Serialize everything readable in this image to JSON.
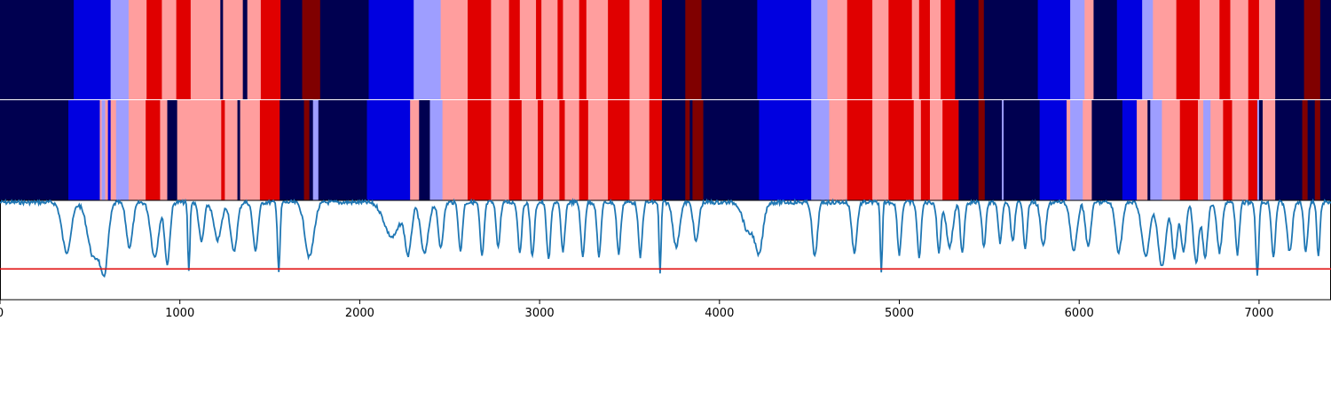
{
  "colors": {
    "state_0": "#000050",
    "state_1": "#0000e0",
    "state_2": "#9e9eff",
    "state_3": "#ff9e9e",
    "state_4": "#e00000",
    "state_5": "#800000",
    "signal_line": "#1f77b4",
    "threshold_line": "#e01010"
  },
  "chart_data": {
    "type": "segmentation-strips-with-line",
    "title": "",
    "xlabel": "",
    "ylabel": "",
    "xlim": [
      0,
      7400
    ],
    "xticks": [
      0,
      1000,
      2000,
      3000,
      4000,
      5000,
      6000,
      7000
    ],
    "xtick_labels": [
      "0",
      "1000",
      "2000",
      "3000",
      "4000",
      "5000",
      "6000",
      "7000"
    ],
    "state_legend": "0=darkest blue, 1=blue, 2=light blue, 3=light red, 4=red, 5=dark red",
    "strip_top": {
      "segments": [
        [
          0,
          410,
          0
        ],
        [
          410,
          615,
          1
        ],
        [
          615,
          715,
          2
        ],
        [
          715,
          815,
          3
        ],
        [
          815,
          900,
          4
        ],
        [
          900,
          980,
          3
        ],
        [
          980,
          1060,
          4
        ],
        [
          1060,
          1225,
          3
        ],
        [
          1225,
          1240,
          0
        ],
        [
          1240,
          1350,
          3
        ],
        [
          1350,
          1375,
          0
        ],
        [
          1375,
          1450,
          3
        ],
        [
          1450,
          1560,
          4
        ],
        [
          1560,
          1680,
          0
        ],
        [
          1680,
          1780,
          5
        ],
        [
          1780,
          2050,
          0
        ],
        [
          2050,
          2300,
          1
        ],
        [
          2300,
          2450,
          2
        ],
        [
          2450,
          2600,
          3
        ],
        [
          2600,
          2730,
          4
        ],
        [
          2730,
          2830,
          3
        ],
        [
          2830,
          2890,
          4
        ],
        [
          2890,
          2980,
          3
        ],
        [
          2980,
          3010,
          4
        ],
        [
          3010,
          3100,
          3
        ],
        [
          3100,
          3130,
          4
        ],
        [
          3130,
          3220,
          3
        ],
        [
          3220,
          3260,
          4
        ],
        [
          3260,
          3380,
          3
        ],
        [
          3380,
          3500,
          4
        ],
        [
          3500,
          3610,
          3
        ],
        [
          3610,
          3680,
          4
        ],
        [
          3680,
          3810,
          0
        ],
        [
          3810,
          3900,
          5
        ],
        [
          3900,
          4210,
          0
        ],
        [
          4210,
          4510,
          1
        ],
        [
          4510,
          4600,
          2
        ],
        [
          4600,
          4710,
          3
        ],
        [
          4710,
          4850,
          4
        ],
        [
          4850,
          4940,
          3
        ],
        [
          4940,
          5070,
          4
        ],
        [
          5070,
          5110,
          3
        ],
        [
          5110,
          5170,
          4
        ],
        [
          5170,
          5230,
          3
        ],
        [
          5230,
          5310,
          4
        ],
        [
          5310,
          5440,
          0
        ],
        [
          5440,
          5470,
          5
        ],
        [
          5470,
          5770,
          0
        ],
        [
          5770,
          5950,
          1
        ],
        [
          5950,
          6030,
          2
        ],
        [
          6030,
          6080,
          3
        ],
        [
          6080,
          6210,
          0
        ],
        [
          6210,
          6350,
          1
        ],
        [
          6350,
          6410,
          2
        ],
        [
          6410,
          6540,
          3
        ],
        [
          6540,
          6670,
          4
        ],
        [
          6670,
          6780,
          3
        ],
        [
          6780,
          6840,
          4
        ],
        [
          6840,
          6940,
          3
        ],
        [
          6940,
          7000,
          4
        ],
        [
          7000,
          7090,
          3
        ],
        [
          7090,
          7250,
          0
        ],
        [
          7250,
          7340,
          5
        ],
        [
          7340,
          7400,
          0
        ]
      ]
    },
    "strip_bottom": {
      "segments": [
        [
          0,
          380,
          0
        ],
        [
          380,
          555,
          1
        ],
        [
          555,
          565,
          3
        ],
        [
          565,
          585,
          2
        ],
        [
          585,
          600,
          3
        ],
        [
          600,
          615,
          1
        ],
        [
          615,
          645,
          3
        ],
        [
          645,
          715,
          2
        ],
        [
          715,
          810,
          3
        ],
        [
          810,
          890,
          4
        ],
        [
          890,
          930,
          3
        ],
        [
          930,
          985,
          0
        ],
        [
          985,
          1050,
          3
        ],
        [
          1050,
          1230,
          3
        ],
        [
          1230,
          1250,
          4
        ],
        [
          1250,
          1320,
          3
        ],
        [
          1320,
          1335,
          0
        ],
        [
          1335,
          1445,
          3
        ],
        [
          1445,
          1555,
          4
        ],
        [
          1555,
          1690,
          0
        ],
        [
          1690,
          1720,
          5
        ],
        [
          1720,
          1740,
          0
        ],
        [
          1740,
          1770,
          2
        ],
        [
          1770,
          2040,
          0
        ],
        [
          2040,
          2280,
          1
        ],
        [
          2280,
          2330,
          3
        ],
        [
          2330,
          2350,
          0
        ],
        [
          2350,
          2390,
          0
        ],
        [
          2390,
          2460,
          2
        ],
        [
          2460,
          2600,
          3
        ],
        [
          2600,
          2730,
          4
        ],
        [
          2730,
          2830,
          3
        ],
        [
          2830,
          2900,
          4
        ],
        [
          2900,
          2990,
          3
        ],
        [
          2990,
          3020,
          4
        ],
        [
          3020,
          3110,
          3
        ],
        [
          3110,
          3140,
          4
        ],
        [
          3140,
          3220,
          3
        ],
        [
          3220,
          3270,
          4
        ],
        [
          3270,
          3380,
          3
        ],
        [
          3380,
          3500,
          4
        ],
        [
          3500,
          3610,
          3
        ],
        [
          3610,
          3680,
          4
        ],
        [
          3680,
          3810,
          0
        ],
        [
          3810,
          3835,
          5
        ],
        [
          3835,
          3850,
          0
        ],
        [
          3850,
          3910,
          5
        ],
        [
          3910,
          4220,
          0
        ],
        [
          4220,
          4510,
          1
        ],
        [
          4510,
          4610,
          2
        ],
        [
          4610,
          4710,
          3
        ],
        [
          4710,
          4850,
          4
        ],
        [
          4850,
          4940,
          3
        ],
        [
          4940,
          5080,
          4
        ],
        [
          5080,
          5120,
          3
        ],
        [
          5120,
          5170,
          4
        ],
        [
          5170,
          5240,
          3
        ],
        [
          5240,
          5330,
          4
        ],
        [
          5330,
          5440,
          0
        ],
        [
          5440,
          5475,
          5
        ],
        [
          5475,
          5570,
          0
        ],
        [
          5570,
          5580,
          2
        ],
        [
          5580,
          5780,
          0
        ],
        [
          5780,
          5930,
          1
        ],
        [
          5930,
          5950,
          3
        ],
        [
          5950,
          6020,
          2
        ],
        [
          6020,
          6070,
          3
        ],
        [
          6070,
          6240,
          0
        ],
        [
          6240,
          6320,
          1
        ],
        [
          6320,
          6380,
          3
        ],
        [
          6380,
          6395,
          0
        ],
        [
          6395,
          6460,
          2
        ],
        [
          6460,
          6560,
          3
        ],
        [
          6560,
          6660,
          4
        ],
        [
          6660,
          6690,
          3
        ],
        [
          6690,
          6730,
          2
        ],
        [
          6730,
          6800,
          3
        ],
        [
          6800,
          6850,
          4
        ],
        [
          6850,
          6940,
          3
        ],
        [
          6940,
          6990,
          4
        ],
        [
          6990,
          7000,
          2
        ],
        [
          7000,
          7020,
          0
        ],
        [
          7020,
          7090,
          3
        ],
        [
          7090,
          7240,
          0
        ],
        [
          7240,
          7270,
          5
        ],
        [
          7270,
          7310,
          0
        ],
        [
          7310,
          7340,
          5
        ],
        [
          7340,
          7400,
          0
        ]
      ]
    },
    "line": {
      "ylim": [
        0,
        1
      ],
      "threshold": 0.31,
      "baseline": 1.0,
      "dips": [
        [
          370,
          35,
          0.5
        ],
        [
          520,
          45,
          0.55
        ],
        [
          580,
          30,
          0.65
        ],
        [
          720,
          25,
          0.45
        ],
        [
          860,
          30,
          0.55
        ],
        [
          930,
          20,
          0.62
        ],
        [
          1050,
          8,
          0.7
        ],
        [
          1120,
          20,
          0.4
        ],
        [
          1210,
          30,
          0.38
        ],
        [
          1300,
          25,
          0.5
        ],
        [
          1420,
          20,
          0.48
        ],
        [
          1550,
          10,
          0.7
        ],
        [
          1720,
          35,
          0.55
        ],
        [
          2180,
          60,
          0.35
        ],
        [
          2270,
          25,
          0.5
        ],
        [
          2360,
          30,
          0.52
        ],
        [
          2450,
          20,
          0.45
        ],
        [
          2560,
          15,
          0.5
        ],
        [
          2680,
          15,
          0.55
        ],
        [
          2770,
          15,
          0.45
        ],
        [
          2890,
          15,
          0.5
        ],
        [
          2960,
          15,
          0.55
        ],
        [
          3050,
          15,
          0.58
        ],
        [
          3130,
          15,
          0.5
        ],
        [
          3240,
          15,
          0.55
        ],
        [
          3330,
          15,
          0.55
        ],
        [
          3440,
          15,
          0.52
        ],
        [
          3560,
          15,
          0.55
        ],
        [
          3670,
          8,
          0.72
        ],
        [
          3760,
          25,
          0.45
        ],
        [
          3870,
          20,
          0.4
        ],
        [
          4160,
          40,
          0.3
        ],
        [
          4220,
          30,
          0.5
        ],
        [
          4530,
          20,
          0.55
        ],
        [
          4750,
          20,
          0.5
        ],
        [
          4900,
          8,
          0.72
        ],
        [
          5000,
          15,
          0.52
        ],
        [
          5110,
          15,
          0.55
        ],
        [
          5220,
          15,
          0.5
        ],
        [
          5280,
          25,
          0.45
        ],
        [
          5350,
          15,
          0.5
        ],
        [
          5470,
          15,
          0.45
        ],
        [
          5560,
          15,
          0.4
        ],
        [
          5630,
          15,
          0.4
        ],
        [
          5700,
          15,
          0.45
        ],
        [
          5800,
          20,
          0.45
        ],
        [
          5970,
          25,
          0.5
        ],
        [
          6050,
          20,
          0.45
        ],
        [
          6220,
          25,
          0.5
        ],
        [
          6370,
          30,
          0.55
        ],
        [
          6460,
          30,
          0.65
        ],
        [
          6530,
          20,
          0.55
        ],
        [
          6580,
          20,
          0.5
        ],
        [
          6650,
          20,
          0.62
        ],
        [
          6700,
          20,
          0.55
        ],
        [
          6780,
          20,
          0.5
        ],
        [
          6880,
          15,
          0.52
        ],
        [
          6990,
          12,
          0.72
        ],
        [
          7080,
          15,
          0.55
        ],
        [
          7170,
          20,
          0.5
        ],
        [
          7260,
          15,
          0.5
        ],
        [
          7330,
          12,
          0.55
        ]
      ]
    }
  }
}
